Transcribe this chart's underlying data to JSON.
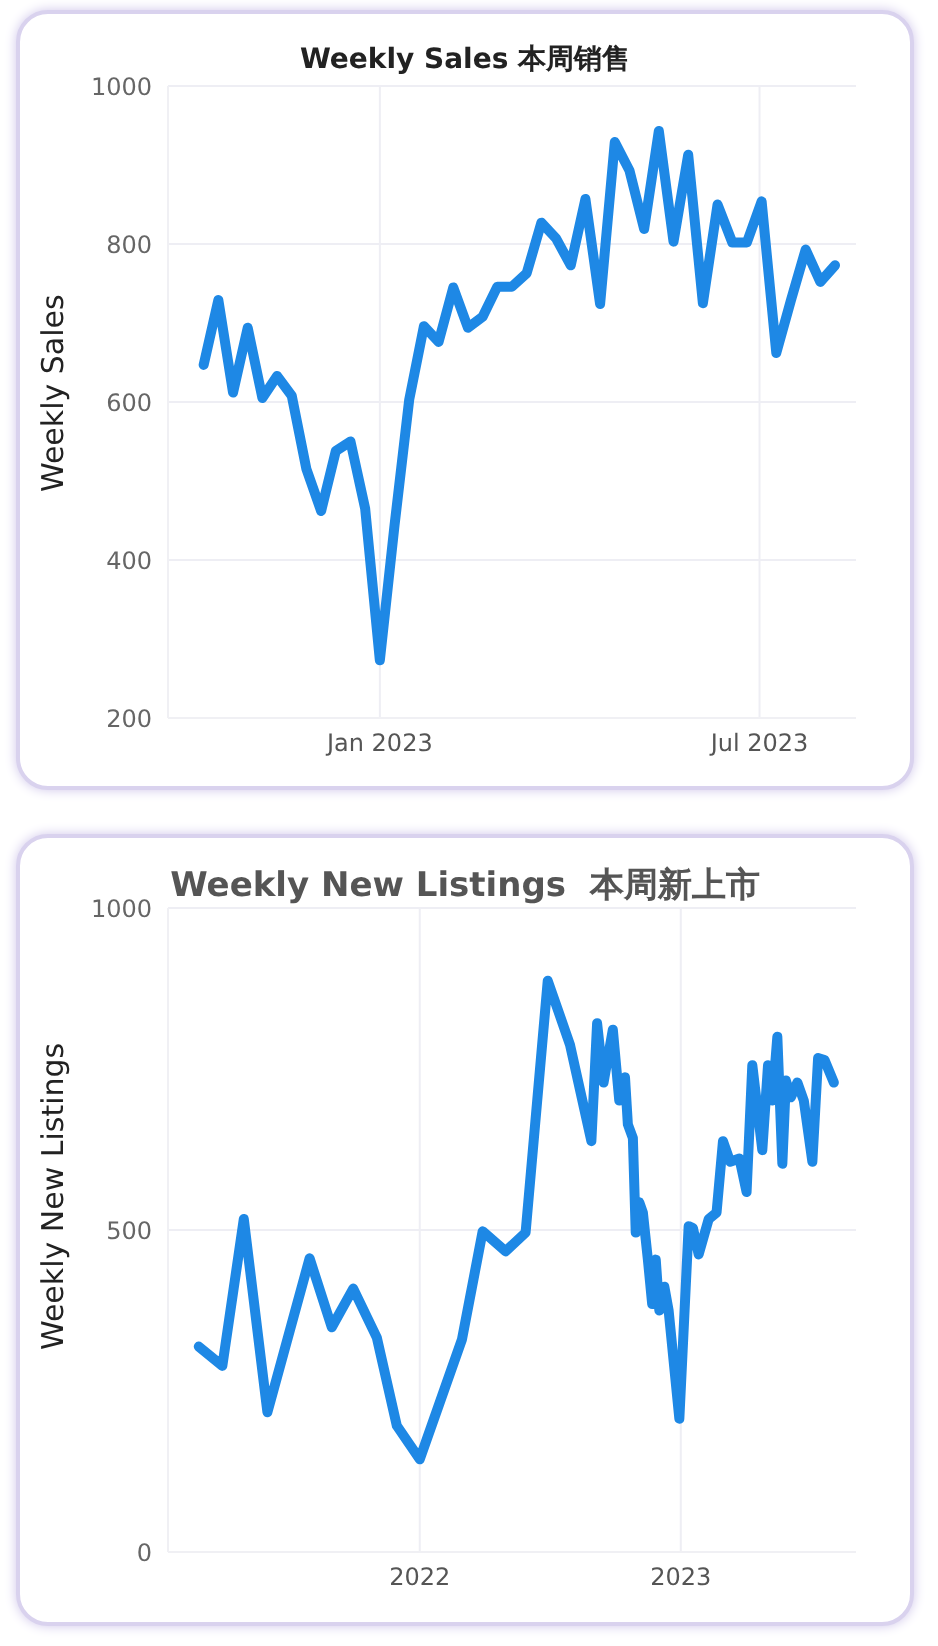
{
  "chart_data": [
    {
      "type": "line",
      "title": "Weekly Sales 本周销售",
      "ylabel": "Weekly Sales",
      "grid": true,
      "legend": false,
      "marker": "none",
      "line_style": "solid",
      "xlim": [
        "2022-09-22",
        "2023-08-16"
      ],
      "xticks": [
        {
          "value": "2023-01-01",
          "label": "Jan 2023"
        },
        {
          "value": "2023-07-01",
          "label": "Jul 2023"
        }
      ],
      "ylim": [
        200,
        1000
      ],
      "yticks": [
        200,
        400,
        600,
        800,
        1000
      ],
      "x": [
        "2022-10-09",
        "2022-10-16",
        "2022-10-23",
        "2022-10-30",
        "2022-11-06",
        "2022-11-13",
        "2022-11-20",
        "2022-11-27",
        "2022-12-04",
        "2022-12-11",
        "2022-12-18",
        "2022-12-25",
        "2023-01-01",
        "2023-01-08",
        "2023-01-15",
        "2023-01-22",
        "2023-01-29",
        "2023-02-05",
        "2023-02-12",
        "2023-02-19",
        "2023-02-26",
        "2023-03-05",
        "2023-03-12",
        "2023-03-19",
        "2023-03-26",
        "2023-04-02",
        "2023-04-09",
        "2023-04-16",
        "2023-04-23",
        "2023-04-30",
        "2023-05-07",
        "2023-05-14",
        "2023-05-21",
        "2023-05-28",
        "2023-06-04",
        "2023-06-11",
        "2023-06-18",
        "2023-06-25",
        "2023-07-02",
        "2023-07-09",
        "2023-07-16",
        "2023-07-23",
        "2023-07-30",
        "2023-08-06"
      ],
      "series": [
        {
          "color": "#1e88e5",
          "values": [
            647,
            729,
            612,
            694,
            605,
            633,
            608,
            515,
            462,
            538,
            550,
            465,
            273,
            444,
            603,
            696,
            676,
            745,
            694,
            708,
            746,
            746,
            763,
            827,
            807,
            773,
            857,
            724,
            929,
            893,
            819,
            943,
            803,
            913,
            725,
            850,
            802,
            802,
            854,
            662,
            729,
            793,
            752,
            773
          ]
        }
      ]
    },
    {
      "type": "line",
      "title": "Weekly New Listings  本周新上市",
      "ylabel": "Weekly New Listings",
      "grid": true,
      "legend": false,
      "marker": "none",
      "line_style": "solid",
      "xlim": [
        "2021-01-14",
        "2023-09-03"
      ],
      "xticks": [
        {
          "value": "2022-01-01",
          "label": "2022"
        },
        {
          "value": "2023-01-01",
          "label": "2023"
        }
      ],
      "ylim": [
        0,
        1000
      ],
      "yticks": [
        0,
        500,
        1000
      ],
      "x": [
        "2021-02-26",
        "2021-03-31",
        "2021-04-30",
        "2021-06-02",
        "2021-07-31",
        "2021-08-31",
        "2021-09-30",
        "2021-11-02",
        "2021-11-30",
        "2022-01-01",
        "2022-03-01",
        "2022-03-30",
        "2022-05-01",
        "2022-05-29",
        "2022-06-29",
        "2022-07-30",
        "2022-08-29",
        "2022-09-06",
        "2022-09-15",
        "2022-09-28",
        "2022-10-07",
        "2022-10-15",
        "2022-10-19",
        "2022-10-26",
        "2022-10-30",
        "2022-11-04",
        "2022-11-09",
        "2022-11-16",
        "2022-11-22",
        "2022-11-27",
        "2022-12-02",
        "2022-12-09",
        "2022-12-15",
        "2022-12-30",
        "2023-01-12",
        "2023-01-18",
        "2023-01-26",
        "2023-02-09",
        "2023-02-20",
        "2023-03-01",
        "2023-03-11",
        "2023-03-24",
        "2023-04-03",
        "2023-04-11",
        "2023-04-25",
        "2023-05-03",
        "2023-05-09",
        "2023-05-16",
        "2023-05-23",
        "2023-05-28",
        "2023-06-04",
        "2023-06-13",
        "2023-06-22",
        "2023-07-04",
        "2023-07-12",
        "2023-07-21",
        "2023-08-03"
      ],
      "series": [
        {
          "color": "#1e88e5",
          "values": [
            319,
            289,
            517,
            217,
            456,
            349,
            409,
            333,
            196,
            144,
            330,
            498,
            467,
            496,
            887,
            788,
            638,
            821,
            729,
            811,
            701,
            737,
            664,
            643,
            496,
            543,
            527,
            454,
            385,
            454,
            375,
            412,
            375,
            207,
            506,
            503,
            462,
            517,
            527,
            638,
            606,
            611,
            559,
            756,
            624,
            756,
            701,
            800,
            603,
            732,
            706,
            729,
            701,
            606,
            767,
            764,
            729
          ]
        }
      ]
    }
  ]
}
